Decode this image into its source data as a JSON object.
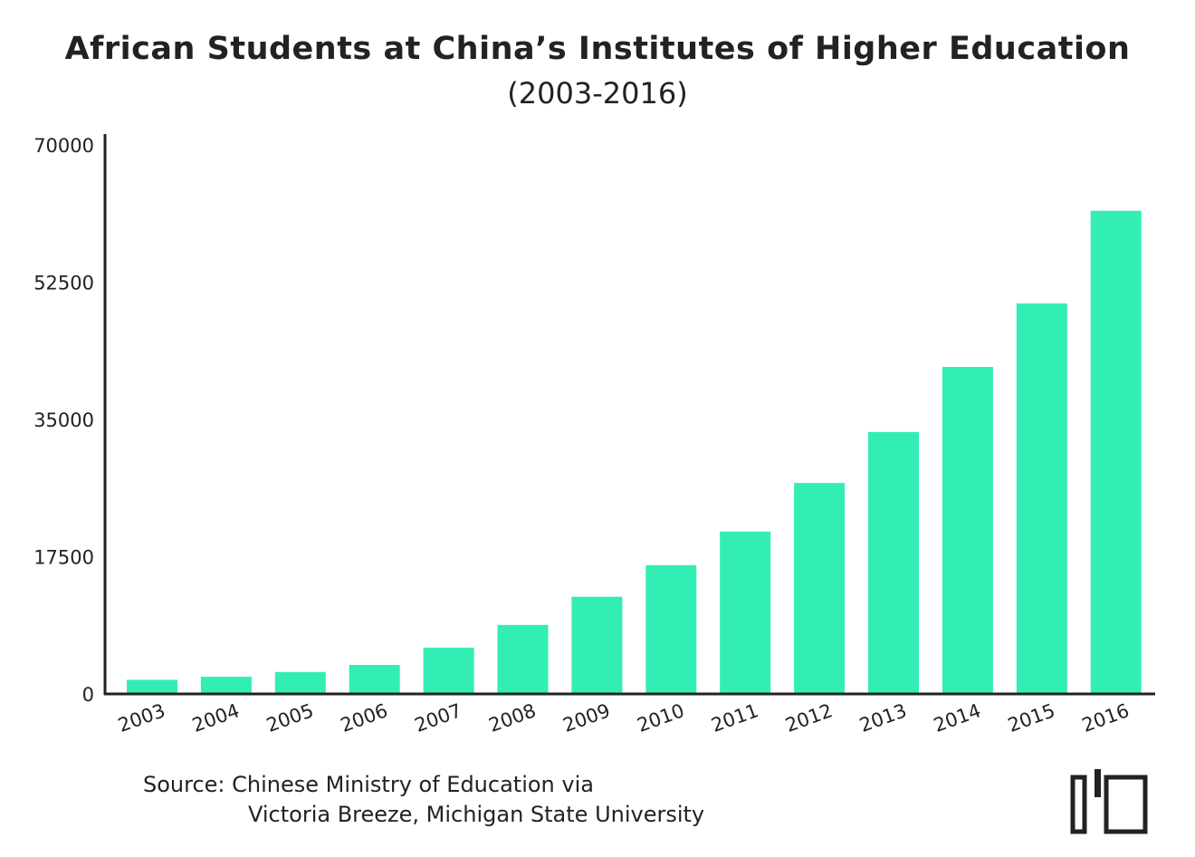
{
  "title": "African Students at China’s Institutes of Higher Education",
  "subtitle": "(2003-2016)",
  "source": {
    "line1": "Source: Chinese Ministry of Education via",
    "line2": "Victoria Breeze, Michigan State University"
  },
  "logo": {
    "icon": "publisher-logo-icon"
  },
  "chart_data": {
    "type": "bar",
    "categories": [
      "2003",
      "2004",
      "2005",
      "2006",
      "2007",
      "2008",
      "2009",
      "2010",
      "2011",
      "2012",
      "2013",
      "2014",
      "2015",
      "2016"
    ],
    "values": [
      1800,
      2200,
      2800,
      3700,
      5900,
      8800,
      12400,
      16400,
      20700,
      26900,
      33400,
      41700,
      49800,
      61600
    ],
    "ylim": [
      0,
      70000
    ],
    "yticks": [
      "0",
      "17500",
      "35000",
      "52500",
      "70000"
    ],
    "xlabel": "",
    "ylabel": "",
    "grid": false,
    "bar_color": "#33EEB4",
    "axis_color": "#222222"
  }
}
